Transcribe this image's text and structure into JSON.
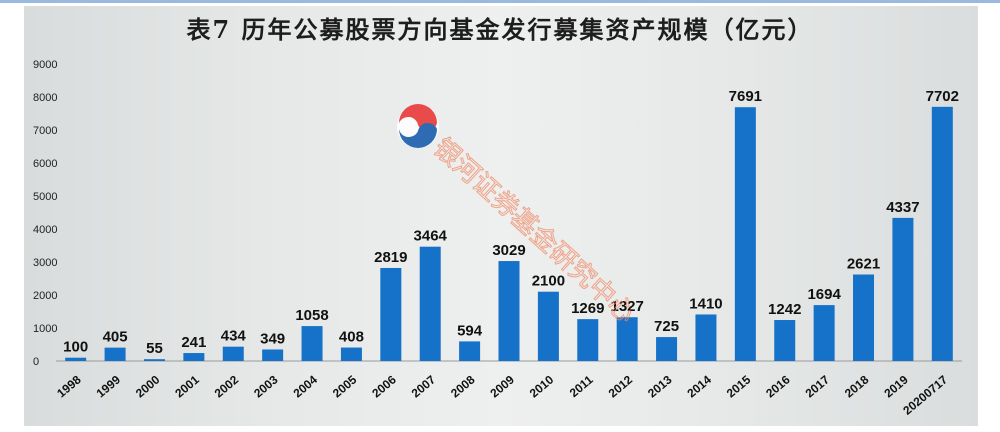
{
  "title": "表7 历年公募股票方向基金发行募集资产规模（亿元）",
  "watermark": "银河证券基金研究中心",
  "colors": {
    "bar": "#1672c9",
    "background": "#e8eaea",
    "title": "#1d1d1d"
  },
  "chart_data": {
    "type": "bar",
    "title": "表7 历年公募股票方向基金发行募集资产规模（亿元）",
    "categories": [
      "1998",
      "1999",
      "2000",
      "2001",
      "2002",
      "2003",
      "2004",
      "2005",
      "2006",
      "2007",
      "2008",
      "2009",
      "2010",
      "2011",
      "2012",
      "2013",
      "2014",
      "2015",
      "2016",
      "2017",
      "2018",
      "2019",
      "20200717"
    ],
    "values": [
      100,
      405,
      55,
      241,
      434,
      349,
      1058,
      408,
      2819,
      3464,
      594,
      3029,
      2100,
      1269,
      1327,
      725,
      1410,
      7691,
      1242,
      1694,
      2621,
      4337,
      7702
    ],
    "ylim": [
      0,
      9000
    ],
    "yticks": [
      0,
      1000,
      2000,
      3000,
      4000,
      5000,
      6000,
      7000,
      8000,
      9000
    ],
    "grid": false,
    "data_labels": true
  }
}
